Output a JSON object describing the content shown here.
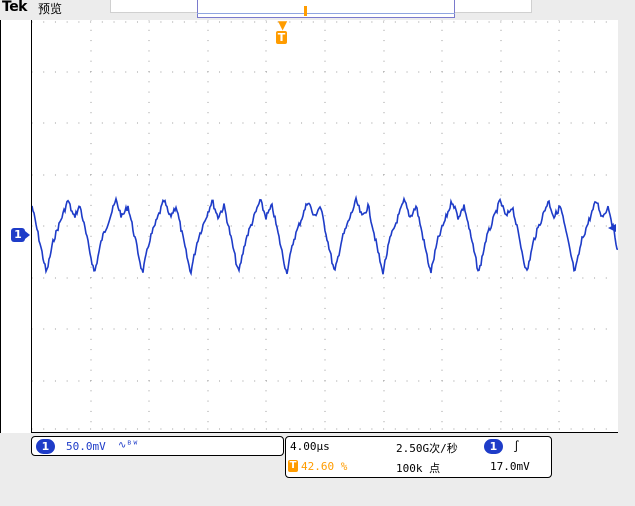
{
  "header": {
    "brand": "Tek",
    "mode": "预览"
  },
  "trigger": {
    "marker_label": "T",
    "position_text": "42.60 %"
  },
  "channel": {
    "id": "1",
    "scale": "50.0mV",
    "coupling_symbol": "∿ᴮᵂ"
  },
  "timebase": {
    "horizontal_scale": "4.00µs",
    "sample_rate": "2.50G次/秒",
    "record_length": "100k 点"
  },
  "trigger_info": {
    "source": "1",
    "slope_symbol": "∫",
    "level": "17.0mV"
  },
  "colors": {
    "waveform": "#1e3cc8",
    "trigger": "#ff9c00",
    "grid_dots": "#9a9a9a"
  },
  "waveform": {
    "divisions_x": 10,
    "divisions_y": 8,
    "description": "periodic distorted waveform, about 12 cycles across screen"
  }
}
